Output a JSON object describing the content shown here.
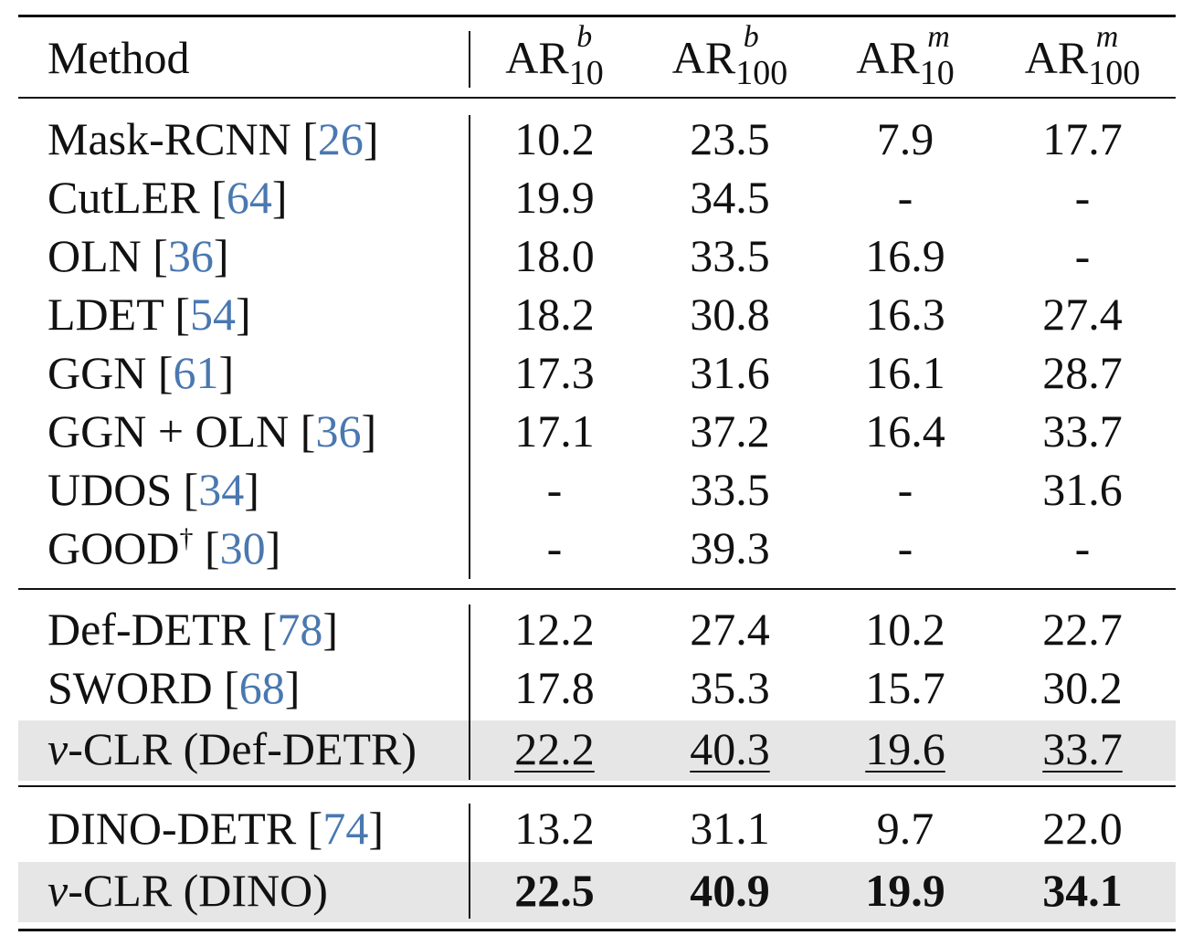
{
  "header": {
    "method": "Method",
    "cols": [
      {
        "base": "AR",
        "sup": "b",
        "sub": "10"
      },
      {
        "base": "AR",
        "sup": "b",
        "sub": "100"
      },
      {
        "base": "AR",
        "sup": "m",
        "sub": "10"
      },
      {
        "base": "AR",
        "sup": "m",
        "sub": "100"
      }
    ]
  },
  "group1": [
    {
      "name": "Mask-RCNN ",
      "ref": "26",
      "values": [
        "10.2",
        "23.5",
        "7.9",
        "17.7"
      ]
    },
    {
      "name": "CutLER ",
      "ref": "64",
      "values": [
        "19.9",
        "34.5",
        "-",
        "-"
      ]
    },
    {
      "name": "OLN ",
      "ref": "36",
      "values": [
        "18.0",
        "33.5",
        "16.9",
        "-"
      ]
    },
    {
      "name": "LDET ",
      "ref": "54",
      "values": [
        "18.2",
        "30.8",
        "16.3",
        "27.4"
      ]
    },
    {
      "name": "GGN ",
      "ref": "61",
      "values": [
        "17.3",
        "31.6",
        "16.1",
        "28.7"
      ]
    },
    {
      "name": "GGN + OLN ",
      "ref": "36",
      "values": [
        "17.1",
        "37.2",
        "16.4",
        "33.7"
      ]
    },
    {
      "name": "UDOS ",
      "ref": "34",
      "values": [
        "-",
        "33.5",
        "-",
        "31.6"
      ]
    },
    {
      "name": "GOOD",
      "dagger": "†",
      "ref": "30",
      "values": [
        "-",
        "39.3",
        "-",
        "-"
      ]
    }
  ],
  "group2": [
    {
      "name": "Def-DETR ",
      "ref": "78",
      "values": [
        "12.2",
        "27.4",
        "10.2",
        "22.7"
      ]
    },
    {
      "name": "SWORD ",
      "ref": "68",
      "values": [
        "17.8",
        "35.3",
        "15.7",
        "30.2"
      ]
    },
    {
      "italic": "v",
      "name": "-CLR (Def-DETR)",
      "values": [
        "22.2",
        "40.3",
        "19.6",
        "33.7"
      ]
    }
  ],
  "group3": [
    {
      "name": "DINO-DETR ",
      "ref": "74",
      "values": [
        "13.2",
        "31.1",
        "9.7",
        "22.0"
      ]
    },
    {
      "italic": "v",
      "name": "-CLR (DINO)",
      "values": [
        "22.5",
        "40.9",
        "19.9",
        "34.1"
      ]
    }
  ],
  "colors": {
    "ref": "#4a78b0",
    "highlight": "#e6e6e6"
  }
}
